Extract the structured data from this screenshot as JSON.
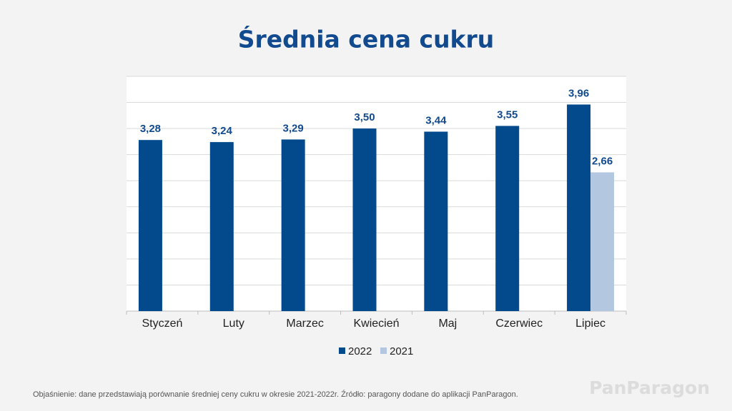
{
  "chart_data": {
    "type": "bar",
    "title": "Średnia cena cukru",
    "categories": [
      "Styczeń",
      "Luty",
      "Marzec",
      "Kwiecień",
      "Maj",
      "Czerwiec",
      "Lipiec"
    ],
    "series": [
      {
        "name": "2022",
        "color": "#034a8c",
        "values": [
          3.28,
          3.24,
          3.29,
          3.5,
          3.44,
          3.55,
          3.96
        ],
        "value_labels": [
          "3,28",
          "3,24",
          "3,29",
          "3,50",
          "3,44",
          "3,55",
          "3,96"
        ]
      },
      {
        "name": "2021",
        "color": "#b4c7e1",
        "values": [
          null,
          null,
          null,
          null,
          null,
          null,
          2.66
        ],
        "value_labels": [
          null,
          null,
          null,
          null,
          null,
          null,
          "2,66"
        ]
      }
    ],
    "ylim": [
      0,
      4.5
    ],
    "yticks": [
      0,
      0.5,
      1,
      1.5,
      2,
      2.5,
      3,
      3.5,
      4,
      4.5
    ],
    "grid": true,
    "legend": "bottom"
  },
  "footnote": "Objaśnienie: dane przedstawiają  porównanie średniej ceny cukru w okresie 2021-2022r.  Źródło: paragony dodane do aplikacji PanParagon.",
  "brand": "PanParagon"
}
